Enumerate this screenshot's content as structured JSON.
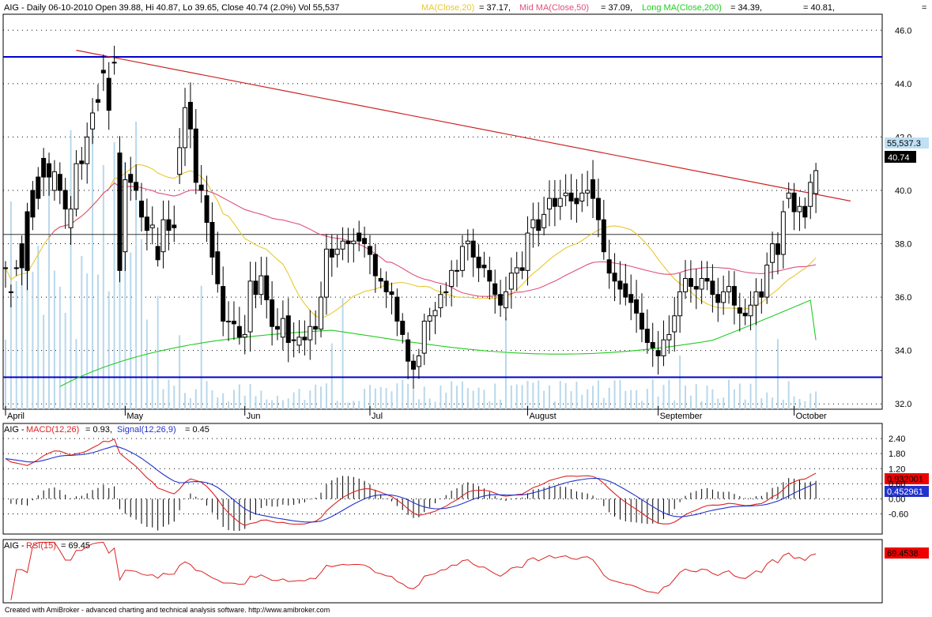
{
  "header": {
    "symbol": "AIG",
    "prefix": "AIG - Daily 06-10-2010 Open 39.88, Hi 40.87, Lo 39.65, Close 40.74 (2.0%) Vol 55,537",
    "ma20_label": "MA(Close,20)",
    "ma20_value": "= 37.17,",
    "ma50_label": "Mid MA(Close,50)",
    "ma50_value": "= 37.09,",
    "ma200_label": "Long MA(Close,200)",
    "ma200_value": "= 34.39,",
    "right_value": "= 40.81,",
    "far_right": "="
  },
  "price_labels": {
    "volume_tag": "55,537.3",
    "close_tag": "40.74"
  },
  "macd_panel": {
    "prefix": "AIG -",
    "macd_label": "MACD(12,26)",
    "macd_value": "= 0.93,",
    "signal_label": "Signal(12,26,9)",
    "signal_value": "= 0.45",
    "macd_tag": "0.932001",
    "signal_tag": "0.452961",
    "ticks": [
      "2.40",
      "1.80",
      "1.20",
      "0.60",
      "0.00",
      "-0.60"
    ]
  },
  "rsi_panel": {
    "prefix": "AIG -",
    "rsi_label": "RSI(15)",
    "rsi_value": "= 69.45",
    "rsi_tag": "69.4538"
  },
  "footer": {
    "text": "Created with AmiBroker - advanced charting and technical analysis software. http://www.amibroker.com"
  },
  "colors": {
    "ma20": "#e8c830",
    "ma50": "#e0507a",
    "ma200": "#22cc22",
    "trend": "#cc2222",
    "hline": "#0000cc",
    "macd": "#dd2222",
    "signal": "#2233cc",
    "volume": "#b8d8ec",
    "close_tag_bg": "#000000",
    "volume_tag_bg": "#bfe0f5",
    "macd_tag_bg": "#ee0000",
    "signal_tag_bg": "#2233cc"
  },
  "chart_data": {
    "type": "candlestick",
    "y_ticks": [
      32,
      34,
      36,
      38,
      40,
      42,
      44,
      46
    ],
    "ylim": [
      31.8,
      46.6
    ],
    "months": [
      "April",
      "May",
      "Jun",
      "Jul",
      "August",
      "September",
      "October"
    ],
    "horizontal_lines": [
      45.0,
      33.0,
      38.35
    ],
    "trendline": [
      [
        46.0,
        45.25
      ],
      [
        200.0,
        39.6
      ]
    ],
    "candles": [
      [
        37.1,
        37.1
      ],
      [
        36.2,
        36.2
      ],
      [
        37.1,
        37.1
      ],
      [
        38.0,
        37.1
      ],
      [
        39.2,
        37.0
      ],
      [
        40.0,
        39.0
      ],
      [
        40.5,
        39.7
      ],
      [
        41.2,
        40.5
      ],
      [
        41.0,
        40.5
      ],
      [
        40.0,
        40.7
      ],
      [
        40.6,
        40.0
      ],
      [
        40.0,
        39.3
      ],
      [
        38.6,
        39.3
      ],
      [
        39.3,
        41.0
      ],
      [
        41.1,
        41.0
      ],
      [
        41.0,
        42.0
      ],
      [
        42.3,
        42.9
      ],
      [
        43.4,
        43.3
      ],
      [
        44.5,
        44.4
      ],
      [
        44.2,
        43.0
      ],
      [
        44.8,
        44.8
      ],
      [
        41.4,
        37.0
      ],
      [
        37.7,
        40.4
      ],
      [
        40.6,
        40.3
      ],
      [
        40.3,
        40.0
      ],
      [
        39.6,
        39.0
      ],
      [
        39.0,
        38.5
      ],
      [
        38.6,
        38.7
      ],
      [
        37.9,
        37.4
      ],
      [
        37.7,
        38.9
      ],
      [
        38.9,
        38.5
      ],
      [
        38.7,
        38.6
      ],
      [
        40.6,
        41.6
      ],
      [
        41.6,
        43.1
      ],
      [
        43.3,
        42.3
      ],
      [
        42.3,
        40.3
      ],
      [
        40.2,
        40.0
      ],
      [
        39.8,
        38.8
      ],
      [
        38.8,
        37.5
      ],
      [
        37.7,
        36.5
      ],
      [
        36.4,
        35.1
      ],
      [
        35.1,
        35.1
      ],
      [
        35.1,
        35.0
      ],
      [
        34.9,
        34.5
      ],
      [
        34.5,
        34.6
      ],
      [
        34.7,
        36.6
      ],
      [
        36.6,
        36.1
      ],
      [
        36.1,
        36.8
      ],
      [
        36.8,
        35.9
      ],
      [
        35.9,
        34.9
      ],
      [
        34.9,
        34.8
      ],
      [
        34.5,
        35.2
      ],
      [
        35.3,
        34.3
      ],
      [
        34.4,
        34.4
      ],
      [
        34.2,
        34.5
      ],
      [
        34.5,
        34.4
      ],
      [
        34.4,
        34.9
      ],
      [
        34.9,
        34.8
      ],
      [
        34.8,
        36.0
      ],
      [
        36.0,
        37.8
      ],
      [
        37.8,
        37.5
      ],
      [
        37.6,
        37.8
      ],
      [
        37.8,
        38.1
      ],
      [
        38.1,
        38.0
      ],
      [
        38.0,
        38.1
      ],
      [
        38.4,
        38.1
      ],
      [
        38.2,
        38.0
      ],
      [
        37.9,
        37.6
      ],
      [
        37.6,
        36.8
      ],
      [
        36.7,
        36.6
      ],
      [
        36.6,
        36.2
      ],
      [
        36.2,
        36.1
      ],
      [
        36.0,
        35.1
      ],
      [
        35.1,
        34.6
      ],
      [
        34.4,
        33.6
      ],
      [
        33.6,
        33.3
      ],
      [
        33.4,
        33.8
      ],
      [
        33.9,
        35.1
      ],
      [
        35.1,
        35.3
      ],
      [
        35.3,
        35.5
      ],
      [
        35.6,
        36.1
      ],
      [
        36.2,
        36.2
      ],
      [
        36.4,
        37.0
      ],
      [
        37.0,
        37.0
      ],
      [
        37.0,
        37.9
      ],
      [
        38.0,
        38.1
      ],
      [
        38.1,
        37.5
      ],
      [
        37.5,
        37.1
      ],
      [
        37.2,
        37.1
      ],
      [
        37.0,
        36.6
      ],
      [
        36.5,
        36.1
      ],
      [
        36.1,
        35.7
      ],
      [
        35.6,
        36.2
      ],
      [
        36.3,
        36.9
      ],
      [
        36.9,
        37.1
      ],
      [
        37.1,
        37.0
      ],
      [
        37.0,
        38.4
      ],
      [
        38.6,
        38.9
      ],
      [
        38.9,
        38.5
      ],
      [
        38.6,
        39.1
      ],
      [
        39.3,
        39.7
      ],
      [
        39.7,
        39.4
      ],
      [
        39.4,
        39.7
      ],
      [
        39.8,
        39.9
      ],
      [
        39.9,
        39.6
      ],
      [
        39.7,
        39.5
      ],
      [
        39.6,
        39.9
      ],
      [
        39.9,
        40.0
      ],
      [
        40.4,
        39.7
      ],
      [
        39.7,
        38.9
      ],
      [
        38.9,
        37.7
      ],
      [
        37.4,
        36.9
      ],
      [
        36.9,
        36.6
      ],
      [
        36.6,
        36.3
      ],
      [
        36.5,
        36.0
      ],
      [
        36.1,
        35.8
      ],
      [
        35.9,
        35.4
      ],
      [
        35.4,
        34.8
      ],
      [
        34.8,
        34.3
      ],
      [
        34.3,
        34.1
      ],
      [
        34.0,
        33.8
      ],
      [
        33.8,
        34.4
      ],
      [
        34.4,
        34.6
      ],
      [
        34.7,
        35.3
      ],
      [
        35.3,
        36.2
      ],
      [
        36.2,
        36.7
      ],
      [
        36.7,
        36.4
      ],
      [
        36.4,
        36.3
      ],
      [
        36.3,
        36.7
      ],
      [
        36.7,
        36.6
      ],
      [
        36.6,
        36.1
      ],
      [
        36.1,
        35.8
      ],
      [
        35.8,
        36.2
      ],
      [
        36.2,
        36.4
      ],
      [
        36.4,
        35.7
      ],
      [
        35.6,
        35.4
      ],
      [
        35.4,
        35.3
      ],
      [
        35.3,
        35.7
      ],
      [
        35.7,
        36.2
      ],
      [
        36.2,
        36.0
      ],
      [
        36.0,
        37.2
      ],
      [
        37.3,
        38.0
      ],
      [
        38.0,
        37.6
      ],
      [
        37.6,
        39.2
      ],
      [
        39.7,
        39.9
      ],
      [
        39.9,
        39.2
      ],
      [
        39.2,
        39.4
      ],
      [
        39.4,
        39.0
      ],
      [
        39.4,
        40.3
      ],
      [
        39.88,
        40.74
      ]
    ],
    "last_bar": {
      "open": 39.88,
      "high": 40.87,
      "low": 39.65,
      "close": 40.74
    },
    "macd_ylim": [
      -1.4,
      3.0
    ],
    "rsi_ylim": [
      15,
      85
    ]
  }
}
